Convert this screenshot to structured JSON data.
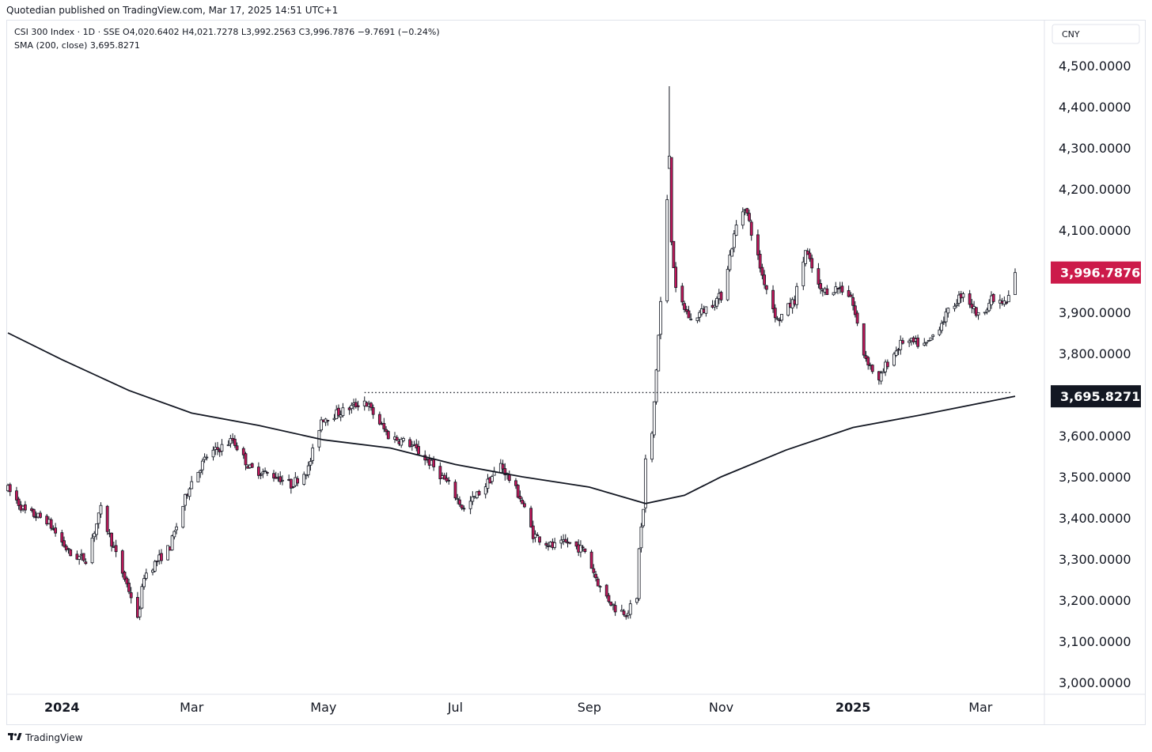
{
  "header": {
    "published": "Quotedian published on TradingView.com, Mar 17, 2025 14:51 UTC+1"
  },
  "legend": {
    "line1": "CSI 300 Index · 1D · SSE  O4,020.6402  H4,021.7278  L3,992.2563  C3,996.7876  −9.7691 (−0.24%)",
    "line2": "SMA (200, close)  3,695.8271"
  },
  "footer": {
    "brand": "TradingView",
    "logo": "tradingview-logo-icon"
  },
  "colors": {
    "up": "#131722",
    "down": "#c2185b",
    "last_price_badge": "#cc1a4a",
    "sma_badge": "#131722",
    "sma_line": "#131722"
  },
  "chart_data": {
    "type": "candlestick",
    "title": "CSI 300 Index · 1D · SSE",
    "currency": "CNY",
    "ylim": [
      2950,
      4560
    ],
    "yticks": [
      {
        "value": 4500,
        "label": "4,500.0000"
      },
      {
        "value": 4400,
        "label": "4,400.0000"
      },
      {
        "value": 4300,
        "label": "4,300.0000"
      },
      {
        "value": 4200,
        "label": "4,200.0000"
      },
      {
        "value": 4100,
        "label": "4,100.0000"
      },
      {
        "value": 3900,
        "label": "3,900.0000"
      },
      {
        "value": 3800,
        "label": "3,800.0000"
      },
      {
        "value": 3600,
        "label": "3,600.0000"
      },
      {
        "value": 3500,
        "label": "3,500.0000"
      },
      {
        "value": 3400,
        "label": "3,400.0000"
      },
      {
        "value": 3300,
        "label": "3,300.0000"
      },
      {
        "value": 3200,
        "label": "3,200.0000"
      },
      {
        "value": 3100,
        "label": "3,100.0000"
      },
      {
        "value": 3000,
        "label": "3,000.0000"
      }
    ],
    "xticks": [
      {
        "date": "2024-01-01",
        "label": "2024",
        "bold": true
      },
      {
        "date": "2024-03-01",
        "label": "Mar",
        "bold": false
      },
      {
        "date": "2024-05-01",
        "label": "May",
        "bold": false
      },
      {
        "date": "2024-07-01",
        "label": "Jul",
        "bold": false
      },
      {
        "date": "2024-09-01",
        "label": "Sep",
        "bold": false
      },
      {
        "date": "2024-11-01",
        "label": "Nov",
        "bold": false
      },
      {
        "date": "2025-01-01",
        "label": "2025",
        "bold": true
      },
      {
        "date": "2025-03-01",
        "label": "Mar",
        "bold": false
      }
    ],
    "x_range": [
      "2023-12-07",
      "2025-03-17"
    ],
    "last_price": {
      "value": 3996.7876,
      "label": "3,996.7876"
    },
    "sma": {
      "name": "SMA (200, close)",
      "last": {
        "value": 3695.8271,
        "label": "3,695.8271"
      },
      "points": [
        [
          "2023-12-07",
          3850
        ],
        [
          "2024-01-01",
          3785
        ],
        [
          "2024-02-01",
          3710
        ],
        [
          "2024-03-01",
          3655
        ],
        [
          "2024-04-01",
          3625
        ],
        [
          "2024-05-01",
          3590
        ],
        [
          "2024-06-01",
          3570
        ],
        [
          "2024-07-01",
          3530
        ],
        [
          "2024-08-01",
          3500
        ],
        [
          "2024-09-01",
          3475
        ],
        [
          "2024-09-27",
          3435
        ],
        [
          "2024-10-15",
          3455
        ],
        [
          "2024-11-01",
          3500
        ],
        [
          "2024-12-01",
          3565
        ],
        [
          "2025-01-01",
          3620
        ],
        [
          "2025-02-01",
          3650
        ],
        [
          "2025-03-17",
          3696
        ]
      ]
    },
    "support_line": {
      "value": 3705,
      "from": "2024-05-20",
      "to": "2025-03-15"
    },
    "price_path": [
      [
        "2023-12-07",
        3470
      ],
      [
        "2023-12-15",
        3415
      ],
      [
        "2023-12-25",
        3395
      ],
      [
        "2024-01-05",
        3310
      ],
      [
        "2024-01-12",
        3300
      ],
      [
        "2024-01-19",
        3420
      ],
      [
        "2024-01-26",
        3310
      ],
      [
        "2024-02-02",
        3210
      ],
      [
        "2024-02-05",
        3150
      ],
      [
        "2024-02-08",
        3260
      ],
      [
        "2024-02-20",
        3330
      ],
      [
        "2024-02-29",
        3480
      ],
      [
        "2024-03-08",
        3550
      ],
      [
        "2024-03-20",
        3590
      ],
      [
        "2024-03-28",
        3520
      ],
      [
        "2024-04-10",
        3500
      ],
      [
        "2024-04-16",
        3480
      ],
      [
        "2024-04-24",
        3520
      ],
      [
        "2024-04-30",
        3640
      ],
      [
        "2024-05-10",
        3660
      ],
      [
        "2024-05-20",
        3685
      ],
      [
        "2024-05-31",
        3600
      ],
      [
        "2024-06-10",
        3580
      ],
      [
        "2024-06-20",
        3530
      ],
      [
        "2024-06-28",
        3480
      ],
      [
        "2024-07-05",
        3420
      ],
      [
        "2024-07-15",
        3480
      ],
      [
        "2024-07-22",
        3530
      ],
      [
        "2024-07-31",
        3450
      ],
      [
        "2024-08-06",
        3360
      ],
      [
        "2024-08-15",
        3330
      ],
      [
        "2024-08-22",
        3340
      ],
      [
        "2024-08-30",
        3320
      ],
      [
        "2024-09-06",
        3230
      ],
      [
        "2024-09-13",
        3180
      ],
      [
        "2024-09-18",
        3170
      ],
      [
        "2024-09-23",
        3200
      ],
      [
        "2024-09-24",
        3330
      ],
      [
        "2024-09-26",
        3420
      ],
      [
        "2024-09-27",
        3540
      ],
      [
        "2024-09-30",
        3600
      ],
      [
        "2024-10-08",
        4250
      ],
      [
        "2024-10-09",
        4080
      ],
      [
        "2024-10-11",
        3950
      ],
      [
        "2024-10-18",
        3880
      ],
      [
        "2024-10-25",
        3910
      ],
      [
        "2024-11-01",
        3940
      ],
      [
        "2024-11-08",
        4110
      ],
      [
        "2024-11-12",
        4160
      ],
      [
        "2024-11-20",
        3990
      ],
      [
        "2024-11-27",
        3880
      ],
      [
        "2024-12-05",
        3930
      ],
      [
        "2024-12-10",
        4050
      ],
      [
        "2024-12-17",
        3950
      ],
      [
        "2024-12-26",
        3960
      ],
      [
        "2024-12-31",
        3940
      ],
      [
        "2025-01-06",
        3800
      ],
      [
        "2025-01-13",
        3730
      ],
      [
        "2025-01-16",
        3770
      ],
      [
        "2025-01-24",
        3830
      ],
      [
        "2025-02-04",
        3820
      ],
      [
        "2025-02-14",
        3900
      ],
      [
        "2025-02-21",
        3950
      ],
      [
        "2025-02-28",
        3890
      ],
      [
        "2025-03-06",
        3930
      ],
      [
        "2025-03-13",
        3920
      ],
      [
        "2025-03-17",
        3996.7876
      ]
    ],
    "spikes": [
      {
        "date": "2024-10-08",
        "open": 4250,
        "high": 4450,
        "low": 4250,
        "close": 4280
      }
    ]
  }
}
